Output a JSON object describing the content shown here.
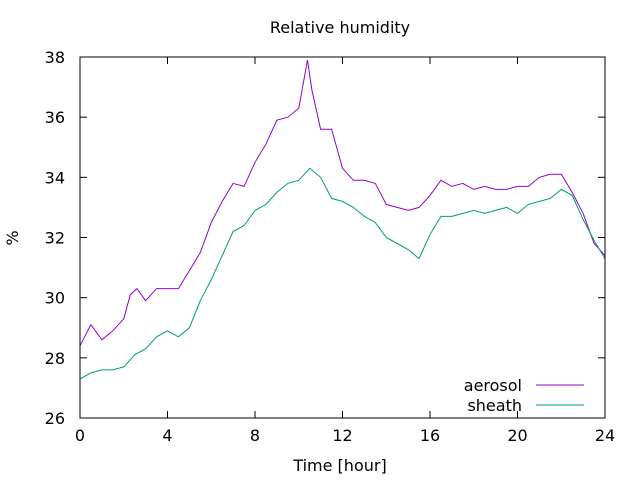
{
  "chart_data": {
    "type": "line",
    "title": "Relative humidity",
    "xlabel": "Time [hour]",
    "ylabel": "%",
    "xlim": [
      0,
      24
    ],
    "ylim": [
      26,
      38
    ],
    "xticks": [
      0,
      4,
      8,
      12,
      16,
      20,
      24
    ],
    "xtick_labels": [
      "0",
      "4",
      "8",
      "12",
      "16",
      "20",
      "24"
    ],
    "yticks": [
      26,
      28,
      30,
      32,
      34,
      36,
      38
    ],
    "ytick_labels": [
      "26",
      "28",
      "30",
      "32",
      "34",
      "36",
      "38"
    ],
    "grid": false,
    "legend_position": "bottom-right",
    "series": [
      {
        "name": "aerosol",
        "color": "#9400d3",
        "x": [
          0,
          0.5,
          1,
          1.5,
          2,
          2.3,
          2.6,
          3,
          3.5,
          4,
          4.5,
          5,
          5.5,
          6,
          6.5,
          7,
          7.5,
          8,
          8.5,
          9,
          9.5,
          10,
          10.4,
          10.6,
          11,
          11.5,
          12,
          12.5,
          13,
          13.5,
          14,
          14.5,
          15,
          15.5,
          16,
          16.5,
          17,
          17.5,
          18,
          18.5,
          19,
          19.5,
          20,
          20.5,
          21,
          21.5,
          22,
          22.5,
          23,
          23.5,
          24
        ],
        "y": [
          28.4,
          29.1,
          28.6,
          28.9,
          29.3,
          30.1,
          30.3,
          29.9,
          30.3,
          30.3,
          30.3,
          30.9,
          31.5,
          32.5,
          33.2,
          33.8,
          33.7,
          34.5,
          35.1,
          35.9,
          36.0,
          36.3,
          37.9,
          36.9,
          35.6,
          35.6,
          34.3,
          33.9,
          33.9,
          33.8,
          33.1,
          33.0,
          32.9,
          33.0,
          33.4,
          33.9,
          33.7,
          33.8,
          33.6,
          33.7,
          33.6,
          33.6,
          33.7,
          33.7,
          34.0,
          34.1,
          34.1,
          33.5,
          32.8,
          31.8,
          31.4
        ]
      },
      {
        "name": "sheath",
        "color": "#009e73",
        "x": [
          0,
          0.5,
          1,
          1.5,
          2,
          2.5,
          3,
          3.5,
          4,
          4.5,
          5,
          5.5,
          6,
          6.5,
          7,
          7.5,
          8,
          8.5,
          9,
          9.5,
          10,
          10.5,
          11,
          11.5,
          12,
          12.5,
          13,
          13.5,
          14,
          14.5,
          15,
          15.5,
          16,
          16.5,
          17,
          17.5,
          18,
          18.5,
          19,
          19.5,
          20,
          20.5,
          21,
          21.5,
          22,
          22.5,
          23,
          23.5,
          24
        ],
        "y": [
          27.3,
          27.5,
          27.6,
          27.6,
          27.7,
          28.1,
          28.3,
          28.7,
          28.9,
          28.7,
          29.0,
          29.9,
          30.6,
          31.4,
          32.2,
          32.4,
          32.9,
          33.1,
          33.5,
          33.8,
          33.9,
          34.3,
          34.0,
          33.3,
          33.2,
          33.0,
          32.7,
          32.5,
          32.0,
          31.8,
          31.6,
          31.3,
          32.1,
          32.7,
          32.7,
          32.8,
          32.9,
          32.8,
          32.9,
          33.0,
          32.8,
          33.1,
          33.2,
          33.3,
          33.6,
          33.4,
          32.6,
          31.9,
          31.3
        ]
      }
    ]
  }
}
